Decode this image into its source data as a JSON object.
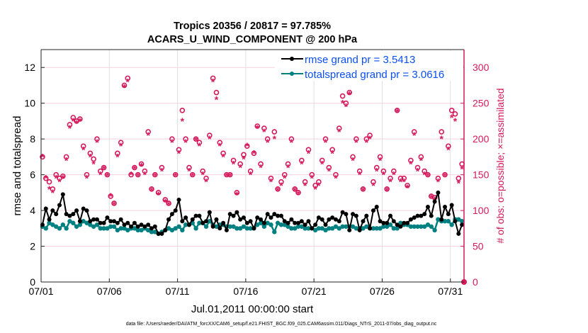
{
  "chart_data": {
    "type": "line",
    "title": [
      "Tropics 20356 / 20817 = 97.785%",
      "ACARS_U_WIND_COMPONENT @ 200 hPa"
    ],
    "xlabel": "Jul.01,2011 00:00:00 start",
    "ylabel": "rmse and totalspread",
    "ylabel_right": "# of obs: o=possible; ×=assimilated",
    "footer": "data file: /Users/raeder/DAI/ATM_forcXX/CAM6_setup/f.e21.FHIST_BGC.f09_025.CAM6assim.011/Diags_NTrS_2011-07/obs_diag_output.nc",
    "xlim_days": [
      0,
      31
    ],
    "ylim": [
      0,
      13
    ],
    "ylim_right": [
      0,
      325
    ],
    "x_ticks": [
      "07/01",
      "07/06",
      "07/11",
      "07/16",
      "07/21",
      "07/26",
      "07/31"
    ],
    "x_tick_days": [
      0,
      5,
      10,
      15,
      20,
      25,
      30
    ],
    "y_ticks": [
      "0",
      "2",
      "4",
      "6",
      "8",
      "10",
      "12"
    ],
    "y_tick_values": [
      0,
      2,
      4,
      6,
      8,
      10,
      12
    ],
    "y_ticks_right": [
      "0",
      "50",
      "100",
      "150",
      "200",
      "250",
      "300"
    ],
    "y_tick_values_right": [
      0,
      50,
      100,
      150,
      200,
      250,
      300
    ],
    "time_step_days": 0.25,
    "legend_position": "top-right",
    "colors": {
      "rmse": "#000000",
      "spread": "#008080",
      "obs": "#d6185a",
      "legend_text": "#0a4ff0"
    },
    "series": [
      {
        "name": "rmse grand pr = 3.5413",
        "values": [
          3.2,
          4.1,
          3.5,
          4.0,
          3.8,
          4.3,
          4.9,
          3.8,
          3.7,
          3.8,
          4.0,
          3.4,
          4.1,
          4.0,
          3.4,
          3.5,
          3.5,
          3.3,
          3.3,
          3.6,
          3.4,
          3.4,
          3.3,
          3.5,
          3.2,
          3.3,
          3.1,
          3.3,
          3.1,
          3.2,
          3.1,
          3.2,
          3.0,
          3.1,
          2.7,
          2.7,
          2.9,
          3.5,
          3.8,
          4.0,
          4.6,
          3.4,
          3.6,
          3.2,
          3.5,
          3.7,
          3.7,
          3.3,
          3.4,
          3.9,
          3.1,
          3.5,
          3.0,
          3.3,
          2.9,
          3.8,
          3.7,
          3.9,
          3.5,
          3.6,
          3.3,
          3.4,
          3.0,
          3.6,
          3.5,
          3.3,
          3.8,
          3.6,
          3.8,
          3.7,
          3.7,
          3.4,
          3.3,
          3.5,
          3.3,
          3.3,
          3.4,
          3.2,
          3.4,
          3.0,
          3.2,
          3.6,
          3.5,
          3.2,
          3.5,
          3.6,
          3.5,
          3.4,
          3.9,
          3.8,
          2.9,
          3.8,
          3.7,
          2.9,
          3.4,
          3.7,
          3.0,
          4.0,
          4.2,
          3.4,
          3.3,
          3.3,
          3.7,
          3.4,
          3.2,
          3.1,
          3.3,
          3.3,
          3.5,
          3.6,
          3.7,
          3.7,
          3.8,
          4.2,
          3.7,
          4.5,
          5.0,
          3.5,
          4.2,
          3.8,
          4.3,
          3.4,
          2.7,
          3.2
        ]
      },
      {
        "name": "totalspread grand pr = 3.0616",
        "values": [
          3.1,
          3.0,
          3.3,
          3.2,
          3.1,
          3.0,
          3.2,
          3.0,
          3.4,
          3.3,
          3.1,
          3.2,
          3.4,
          3.3,
          3.2,
          3.1,
          3.2,
          3.0,
          3.0,
          3.0,
          3.1,
          3.1,
          2.9,
          3.0,
          3.0,
          2.9,
          3.0,
          3.0,
          2.9,
          2.9,
          3.0,
          2.9,
          2.8,
          2.8,
          2.7,
          2.8,
          2.9,
          3.0,
          2.9,
          3.0,
          3.1,
          2.9,
          3.2,
          3.2,
          3.3,
          3.0,
          3.3,
          3.3,
          3.1,
          3.4,
          3.2,
          3.1,
          3.2,
          3.2,
          3.1,
          3.1,
          3.1,
          3.0,
          3.0,
          3.1,
          3.0,
          3.0,
          3.0,
          3.2,
          3.3,
          3.1,
          3.3,
          3.2,
          2.8,
          3.3,
          3.2,
          3.2,
          3.1,
          3.0,
          3.0,
          3.1,
          3.1,
          3.0,
          3.0,
          3.0,
          2.9,
          3.0,
          3.0,
          2.9,
          3.0,
          3.0,
          3.1,
          3.0,
          3.1,
          3.1,
          3.1,
          3.1,
          3.0,
          3.0,
          3.0,
          3.1,
          3.0,
          3.0,
          3.0,
          3.0,
          3.1,
          3.1,
          3.2,
          3.0,
          3.0,
          3.3,
          3.2,
          3.2,
          3.1,
          3.1,
          3.1,
          3.1,
          3.1,
          3.2,
          3.1,
          2.9,
          3.5,
          3.4,
          3.4,
          3.4,
          3.2,
          3.5,
          3.5,
          3.4
        ]
      }
    ],
    "obs_possible": [
      175,
      145,
      140,
      130,
      150,
      145,
      148,
      175,
      220,
      230,
      225,
      228,
      190,
      150,
      180,
      172,
      200,
      155,
      160,
      150,
      120,
      110,
      180,
      195,
      275,
      285,
      150,
      160,
      150,
      165,
      155,
      210,
      130,
      150,
      125,
      160,
      115,
      110,
      200,
      150,
      185,
      240,
      200,
      160,
      150,
      200,
      195,
      155,
      145,
      205,
      285,
      265,
      195,
      180,
      150,
      150,
      170,
      125,
      165,
      178,
      190,
      155,
      180,
      218,
      165,
      215,
      200,
      145,
      210,
      130,
      140,
      150,
      165,
      200,
      130,
      125,
      170,
      140,
      185,
      150,
      135,
      140,
      170,
      200,
      160,
      185,
      150,
      215,
      260,
      250,
      265,
      175,
      200,
      155,
      130,
      200,
      205,
      140,
      160,
      175,
      155,
      130,
      145,
      155,
      240,
      145,
      145,
      135,
      170,
      210,
      160,
      175,
      155,
      150,
      120,
      118,
      145,
      210,
      150,
      190,
      240,
      235,
      145,
      165
    ],
    "obs_assimilated": [
      175,
      145,
      130,
      125,
      145,
      140,
      145,
      170,
      215,
      225,
      222,
      225,
      185,
      145,
      175,
      165,
      195,
      150,
      158,
      148,
      120,
      108,
      175,
      190,
      272,
      280,
      150,
      158,
      148,
      162,
      150,
      205,
      128,
      148,
      122,
      155,
      112,
      108,
      195,
      148,
      180,
      225,
      195,
      155,
      148,
      198,
      190,
      150,
      140,
      200,
      280,
      255,
      190,
      175,
      148,
      148,
      165,
      122,
      160,
      172,
      190,
      150,
      180,
      215,
      160,
      210,
      195,
      140,
      200,
      128,
      135,
      145,
      160,
      195,
      128,
      123,
      165,
      135,
      180,
      145,
      130,
      135,
      165,
      195,
      155,
      180,
      145,
      210,
      250,
      245,
      262,
      170,
      195,
      150,
      128,
      195,
      200,
      135,
      155,
      170,
      150,
      128,
      140,
      150,
      238,
      140,
      140,
      132,
      165,
      205,
      155,
      170,
      150,
      148,
      118,
      115,
      140,
      200,
      148,
      185,
      230,
      225,
      138,
      158
    ],
    "obs_final_point": {
      "day": 31,
      "possible": 0,
      "assimilated": 0
    }
  }
}
